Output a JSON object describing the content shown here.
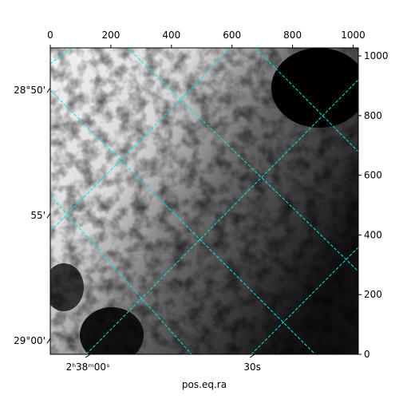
{
  "chart_data": {
    "type": "image",
    "xlabel": "pos.eq.ra",
    "xlim": [
      0,
      1017
    ],
    "ylim": [
      0,
      1027
    ],
    "xticks": [
      0,
      200,
      400,
      600,
      800,
      1000
    ],
    "yticks": [
      0,
      200,
      400,
      600,
      800,
      1000
    ],
    "dec_ticks": [
      {
        "value": 885,
        "label": "28°50'"
      },
      {
        "value": 465,
        "label": "55'"
      },
      {
        "value": 45,
        "label": "29°00'"
      }
    ],
    "ra_ticks": [
      {
        "value": 124,
        "label": "2ʰ38ᵐ00ˢ"
      },
      {
        "value": 667,
        "label": "30s"
      }
    ],
    "grid": true,
    "grid_color": "#00e5e5"
  }
}
